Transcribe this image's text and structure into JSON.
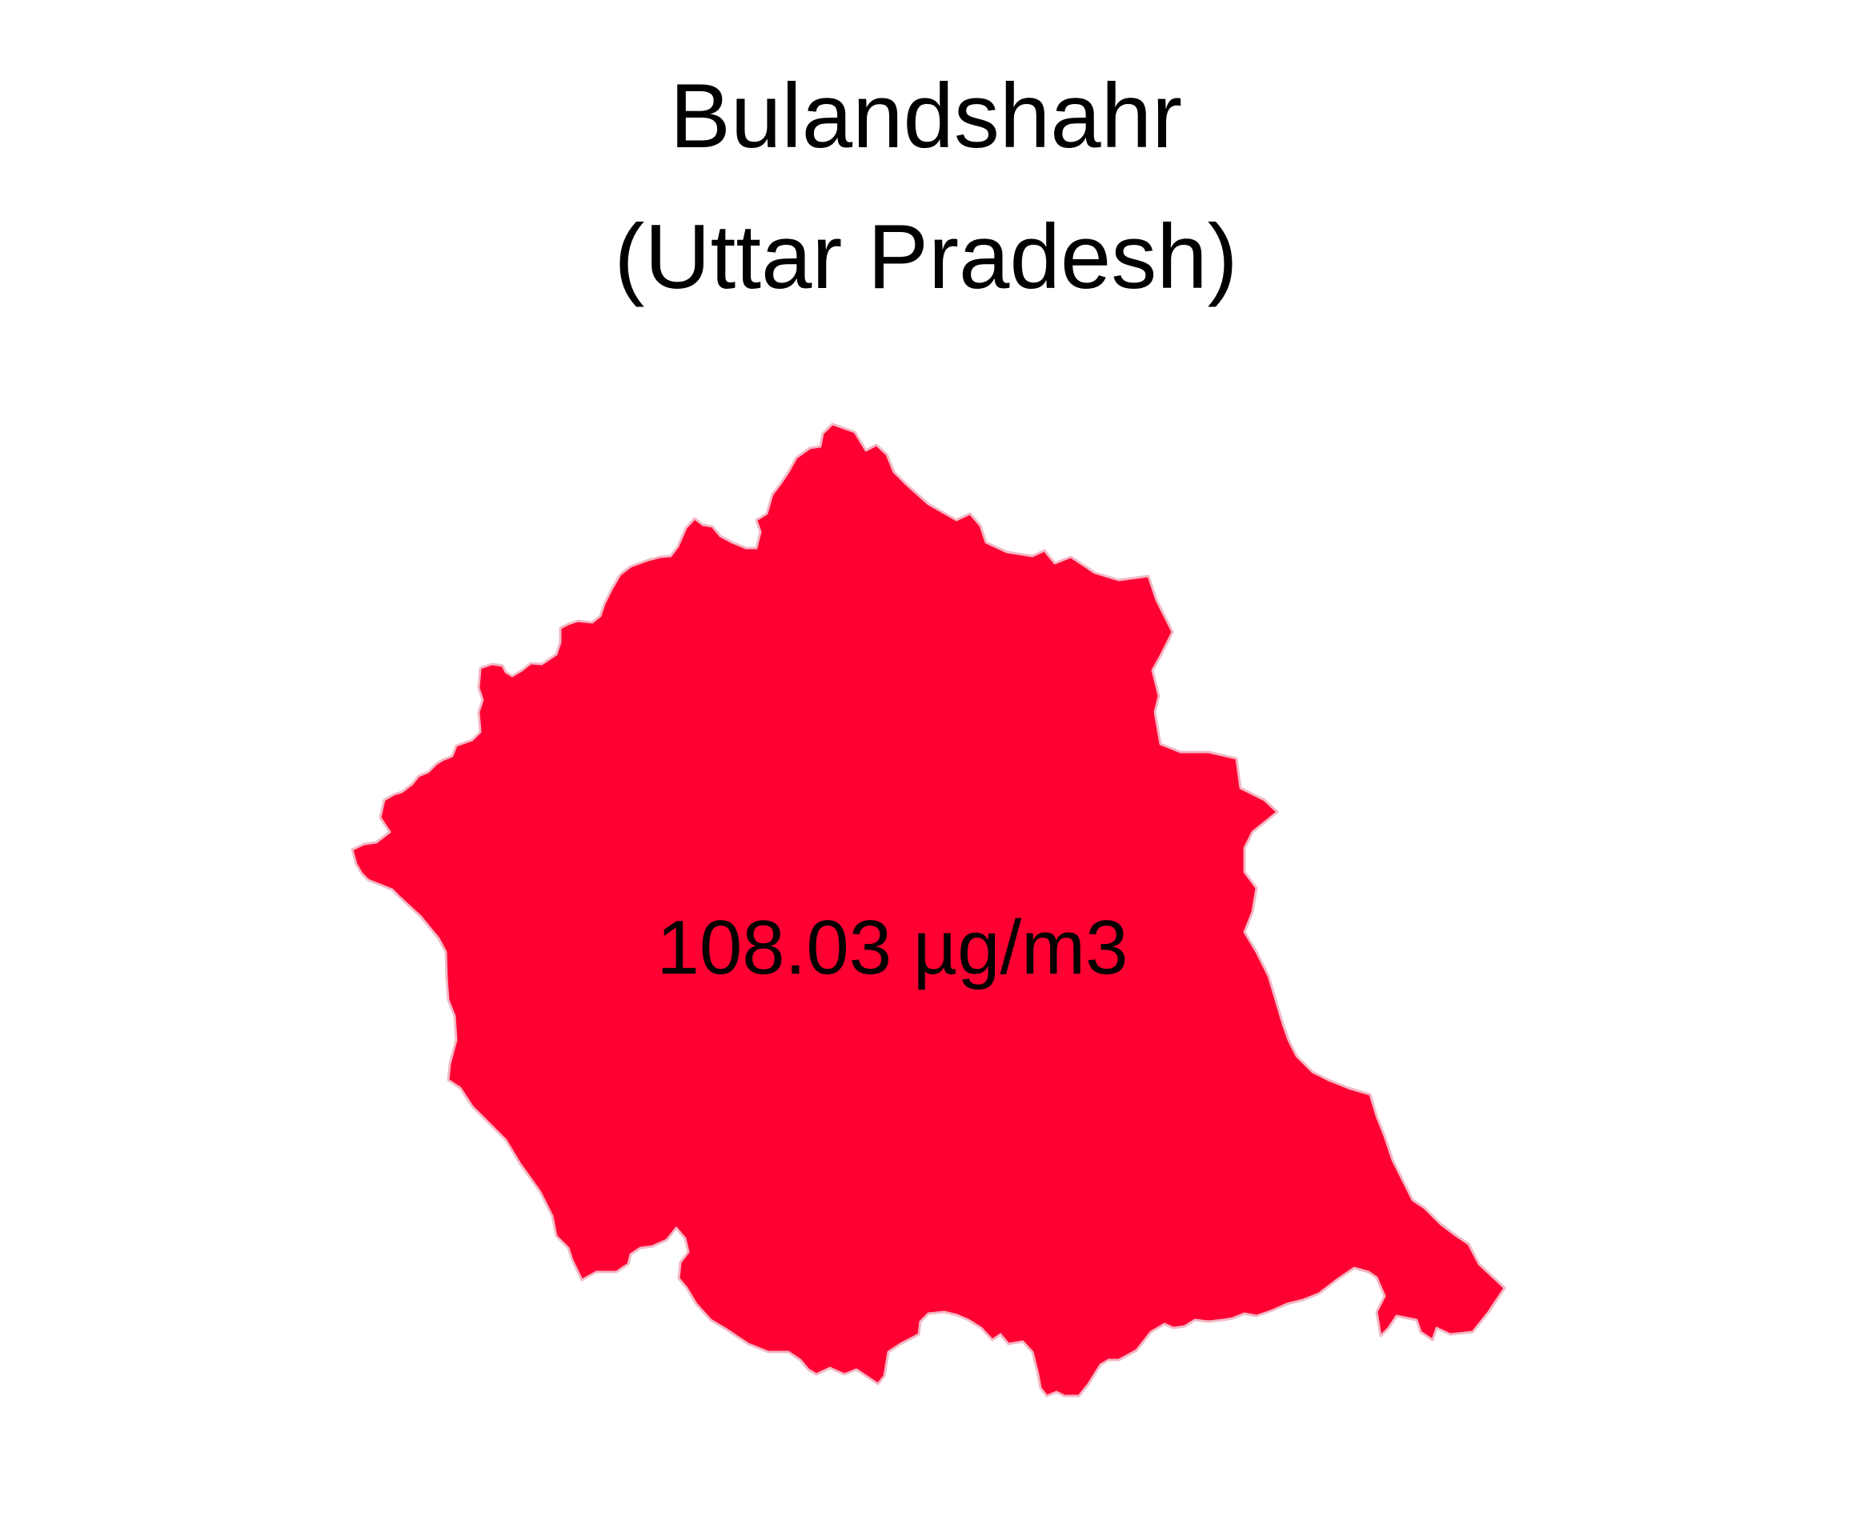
{
  "map": {
    "district": "Bulandshahr",
    "state_line": "(Uttar Pradesh)",
    "value_label": "108.03 µg/m3",
    "value": 108.03,
    "unit": "µg/m3",
    "fill_color": "#ff0033",
    "border_color": "#f2b8c4",
    "background_color": "#ffffff"
  }
}
